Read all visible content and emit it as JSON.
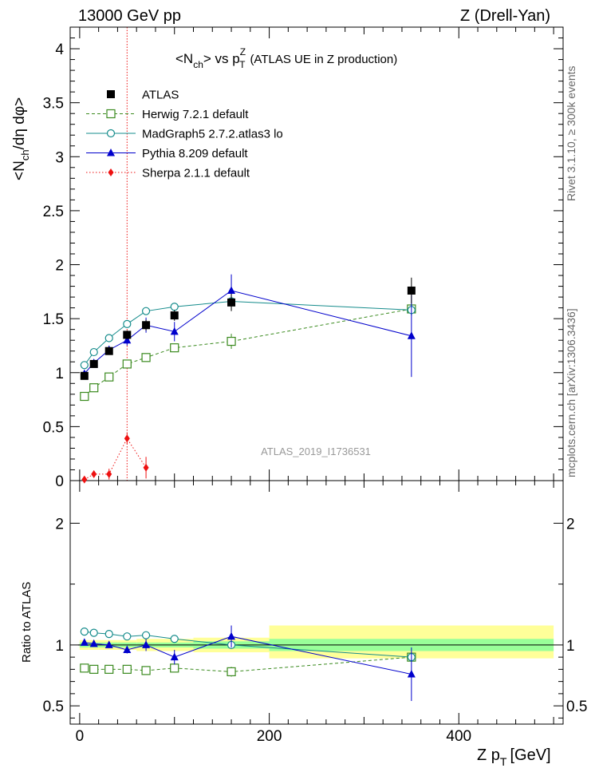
{
  "header": {
    "left": "13000 GeV pp",
    "right": "Z (Drell-Yan)"
  },
  "title": {
    "main": "<N",
    "main_sub": "ch",
    "mid": "> vs p",
    "p_sup": "Z",
    "p_sub": "T",
    "rest": "(ATLAS UE in Z production)"
  },
  "side_labels": {
    "rivet": "Rivet 3.1.10, ≥ 300k events",
    "mcplots": "mcplots.cern.ch [arXiv:1306.3436]"
  },
  "watermark": "ATLAS_2019_I1736531",
  "y_label": {
    "p1": "<N",
    "sub": "ch",
    "p2": "/dη dφ>"
  },
  "ratio_label": "Ratio to ATLAS",
  "x_label": {
    "p1": "Z p",
    "sub": "T",
    "p2": "[GeV]"
  },
  "colors": {
    "atlas": "#000000",
    "herwig": "#3a8a1e",
    "madgraph": "#168c8c",
    "pythia": "#0000cc",
    "sherpa": "#ee1111",
    "band_yellow": "#ffff99",
    "band_green": "#99ff99"
  },
  "chart_data": {
    "type": "scatter",
    "x": [
      5,
      15,
      31,
      50,
      70,
      100,
      160,
      350
    ],
    "xlim": [
      -10,
      510
    ],
    "ylim": [
      0,
      4.2
    ],
    "ratio_ylim": [
      0.35,
      2.35
    ],
    "x_ticks": [
      "0",
      "200",
      "400"
    ],
    "y_ticks": [
      "0",
      "0.5",
      "1",
      "1.5",
      "2",
      "2.5",
      "3",
      "3.5",
      "4"
    ],
    "ratio_ticks": [
      "0.5",
      "1",
      "2"
    ],
    "legend_position": "top-left",
    "reference_line_x": 50,
    "series": [
      {
        "name": "ATLAS",
        "key": "atlas",
        "marker": "square-filled",
        "line": "none",
        "y": [
          0.97,
          1.08,
          1.2,
          1.35,
          1.44,
          1.53,
          1.65,
          1.76
        ],
        "err": [
          0.02,
          0.02,
          0.03,
          0.04,
          0.05,
          0.05,
          0.08,
          0.12
        ]
      },
      {
        "name": "Herwig 7.2.1 default",
        "key": "herwig",
        "marker": "square-open",
        "line": "dashed",
        "y": [
          0.78,
          0.86,
          0.96,
          1.08,
          1.14,
          1.23,
          1.29,
          1.59
        ],
        "err": [
          0.01,
          0.01,
          0.02,
          0.02,
          0.03,
          0.04,
          0.07,
          0.05
        ]
      },
      {
        "name": "MadGraph5 2.7.2.atlas3 lo",
        "key": "madgraph",
        "marker": "circle-open",
        "line": "solid",
        "y": [
          1.07,
          1.19,
          1.32,
          1.45,
          1.57,
          1.61,
          1.66,
          1.58
        ],
        "err": [
          0.01,
          0.01,
          0.01,
          0.01,
          0.02,
          0.02,
          0.03,
          0.05
        ]
      },
      {
        "name": "Pythia 8.209 default",
        "key": "pythia",
        "marker": "triangle-filled",
        "line": "solid",
        "y": [
          0.99,
          1.09,
          1.21,
          1.3,
          1.44,
          1.38,
          1.76,
          1.34
        ],
        "err": [
          0.02,
          0.03,
          0.04,
          0.05,
          0.07,
          0.09,
          0.15,
          0.38
        ]
      },
      {
        "name": "Sherpa 2.1.1 default",
        "key": "sherpa",
        "marker": "diamond-filled",
        "line": "dotted",
        "y": [
          0.01,
          0.06,
          0.06,
          0.39,
          0.12,
          null,
          null,
          null
        ],
        "err": [
          0.02,
          0.02,
          0.05,
          0.05,
          0.1,
          null,
          null,
          null
        ]
      }
    ],
    "ratio": {
      "bands": [
        {
          "x0": 0,
          "x1": 10,
          "yellow": [
            0.96,
            1.04
          ],
          "green": [
            0.98,
            1.02
          ]
        },
        {
          "x0": 10,
          "x1": 20,
          "yellow": [
            0.96,
            1.04
          ],
          "green": [
            0.98,
            1.02
          ]
        },
        {
          "x0": 20,
          "x1": 40,
          "yellow": [
            0.96,
            1.04
          ],
          "green": [
            0.98,
            1.02
          ]
        },
        {
          "x0": 40,
          "x1": 60,
          "yellow": [
            0.96,
            1.04
          ],
          "green": [
            0.98,
            1.02
          ]
        },
        {
          "x0": 60,
          "x1": 80,
          "yellow": [
            0.95,
            1.05
          ],
          "green": [
            0.98,
            1.02
          ]
        },
        {
          "x0": 80,
          "x1": 120,
          "yellow": [
            0.95,
            1.05
          ],
          "green": [
            0.98,
            1.02
          ]
        },
        {
          "x0": 120,
          "x1": 200,
          "yellow": [
            0.94,
            1.06
          ],
          "green": [
            0.97,
            1.03
          ]
        },
        {
          "x0": 200,
          "x1": 500,
          "yellow": [
            0.89,
            1.16
          ],
          "green": [
            0.95,
            1.05
          ]
        }
      ],
      "series": [
        {
          "key": "herwig",
          "y": [
            0.81,
            0.8,
            0.8,
            0.8,
            0.79,
            0.81,
            0.78,
            0.9
          ],
          "err": [
            0.01,
            0.01,
            0.01,
            0.02,
            0.02,
            0.02,
            0.04,
            0.03
          ]
        },
        {
          "key": "madgraph",
          "y": [
            1.11,
            1.1,
            1.09,
            1.07,
            1.08,
            1.05,
            1.0,
            0.9
          ],
          "err": [
            0.01,
            0.01,
            0.01,
            0.01,
            0.01,
            0.01,
            0.02,
            0.03
          ]
        },
        {
          "key": "pythia",
          "y": [
            1.02,
            1.01,
            1.0,
            0.96,
            1.0,
            0.9,
            1.07,
            0.76
          ],
          "err": [
            0.02,
            0.02,
            0.02,
            0.03,
            0.05,
            0.06,
            0.09,
            0.22
          ]
        }
      ]
    }
  }
}
